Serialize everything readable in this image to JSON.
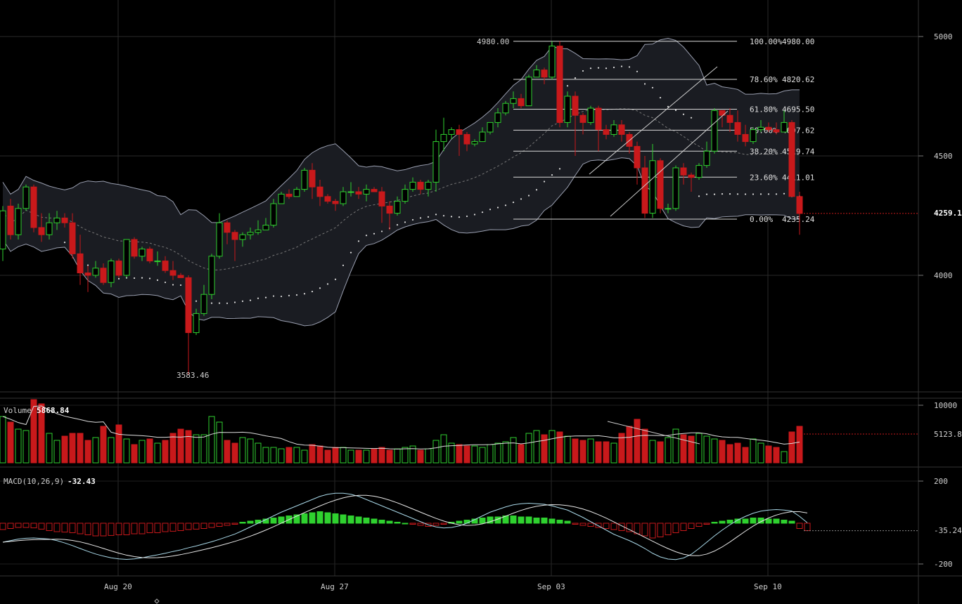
{
  "colors": {
    "background": "#000000",
    "up": "#2fd12f",
    "down": "#c8191b",
    "grid": "#2a2a2a",
    "band_fill": "#1a1c22",
    "band_line": "#9a9fb0",
    "fib_line": "#d8d8d8",
    "macd_line": "#a9d8e8",
    "signal_line": "#e8e8e8"
  },
  "price_panel": {
    "high_label": "4980.00",
    "low_label": "3583.46",
    "current_price": "4259.1",
    "fib_levels": [
      {
        "pct": "100.00%",
        "price": "4980.00",
        "value": 4980.0
      },
      {
        "pct": "78.60%",
        "price": "4820.62",
        "value": 4820.62
      },
      {
        "pct": "61.80%",
        "price": "4695.50",
        "value": 4695.5
      },
      {
        "pct": "50.00%",
        "price": "4607.62",
        "value": 4607.62
      },
      {
        "pct": "38.20%",
        "price": "4519.74",
        "value": 4519.74
      },
      {
        "pct": "23.60%",
        "price": "4411.01",
        "value": 4411.01
      },
      {
        "pct": "0.00%",
        "price": "4235.24",
        "value": 4235.24
      }
    ],
    "y_ticks": [
      "5000",
      "4500",
      "4000"
    ]
  },
  "volume_panel": {
    "label": "Volume",
    "value": "5868.84",
    "y_ticks": [
      "10000"
    ],
    "current": "5123.8"
  },
  "macd_panel": {
    "label": "MACD(10,26,9)",
    "value": "-32.43",
    "y_ticks": [
      "200",
      "-200"
    ],
    "current": "-35.24"
  },
  "x_ticks": [
    "Aug 20",
    "Aug 27",
    "Sep 03",
    "Sep 10"
  ],
  "chart_data": {
    "type": "candlestick",
    "x_labels": [
      "Aug 20",
      "Aug 27",
      "Sep 03",
      "Sep 10"
    ],
    "price_range": [
      3440,
      5110
    ],
    "candles": [
      [
        4110,
        4270,
        4060,
        4290
      ],
      [
        4290,
        4170,
        4150,
        4320
      ],
      [
        4170,
        4280,
        4150,
        4300
      ],
      [
        4280,
        4370,
        4270,
        4380
      ],
      [
        4370,
        4200,
        4180,
        4380
      ],
      [
        4200,
        4170,
        4140,
        4260
      ],
      [
        4170,
        4220,
        4150,
        4260
      ],
      [
        4220,
        4240,
        4190,
        4270
      ],
      [
        4240,
        4220,
        4200,
        4260
      ],
      [
        4220,
        4090,
        4070,
        4260
      ],
      [
        4090,
        4010,
        3960,
        4170
      ],
      [
        4010,
        4000,
        3930,
        4040
      ],
      [
        4000,
        4030,
        3990,
        4060
      ],
      [
        4030,
        3970,
        3960,
        4050
      ],
      [
        3970,
        4060,
        3950,
        4070
      ],
      [
        4060,
        4000,
        3990,
        4070
      ],
      [
        4000,
        4150,
        3990,
        4150
      ],
      [
        4150,
        4080,
        4070,
        4160
      ],
      [
        4080,
        4110,
        4060,
        4120
      ],
      [
        4110,
        4060,
        4050,
        4120
      ],
      [
        4060,
        4060,
        4040,
        4100
      ],
      [
        4060,
        4020,
        4010,
        4080
      ],
      [
        4020,
        4000,
        3980,
        4060
      ],
      [
        4000,
        3990,
        3990,
        4010
      ],
      [
        3990,
        3760,
        3583.46,
        4000
      ],
      [
        3760,
        3840,
        3750,
        3860
      ],
      [
        3840,
        3920,
        3830,
        3960
      ],
      [
        3920,
        4080,
        3900,
        4090
      ],
      [
        4080,
        4220,
        4070,
        4260
      ],
      [
        4220,
        4180,
        4130,
        4230
      ],
      [
        4180,
        4150,
        4060,
        4190
      ],
      [
        4150,
        4170,
        4120,
        4180
      ],
      [
        4170,
        4180,
        4150,
        4200
      ],
      [
        4180,
        4190,
        4170,
        4230
      ],
      [
        4190,
        4210,
        4200,
        4240
      ],
      [
        4210,
        4300,
        4200,
        4320
      ],
      [
        4300,
        4340,
        4300,
        4350
      ],
      [
        4340,
        4330,
        4320,
        4360
      ],
      [
        4330,
        4360,
        4340,
        4370
      ],
      [
        4360,
        4440,
        4350,
        4450
      ],
      [
        4440,
        4370,
        4320,
        4470
      ],
      [
        4370,
        4330,
        4290,
        4400
      ],
      [
        4330,
        4310,
        4300,
        4340
      ],
      [
        4310,
        4300,
        4270,
        4320
      ],
      [
        4300,
        4350,
        4290,
        4370
      ],
      [
        4350,
        4350,
        4330,
        4390
      ],
      [
        4350,
        4340,
        4320,
        4370
      ],
      [
        4340,
        4360,
        4310,
        4380
      ],
      [
        4360,
        4350,
        4350,
        4370
      ],
      [
        4350,
        4290,
        4220,
        4370
      ],
      [
        4290,
        4260,
        4190,
        4310
      ],
      [
        4260,
        4310,
        4250,
        4330
      ],
      [
        4310,
        4360,
        4300,
        4380
      ],
      [
        4360,
        4390,
        4350,
        4410
      ],
      [
        4390,
        4360,
        4340,
        4400
      ],
      [
        4360,
        4390,
        4330,
        4400
      ],
      [
        4390,
        4560,
        4350,
        4610
      ],
      [
        4560,
        4590,
        4520,
        4660
      ],
      [
        4590,
        4610,
        4570,
        4620
      ],
      [
        4610,
        4590,
        4500,
        4630
      ],
      [
        4590,
        4550,
        4520,
        4600
      ],
      [
        4550,
        4560,
        4540,
        4570
      ],
      [
        4560,
        4600,
        4560,
        4620
      ],
      [
        4600,
        4640,
        4590,
        4640
      ],
      [
        4640,
        4680,
        4620,
        4700
      ],
      [
        4680,
        4720,
        4670,
        4730
      ],
      [
        4720,
        4740,
        4700,
        4770
      ],
      [
        4740,
        4710,
        4700,
        4760
      ],
      [
        4710,
        4830,
        4710,
        4840
      ],
      [
        4830,
        4860,
        4830,
        4880
      ],
      [
        4860,
        4830,
        4800,
        4870
      ],
      [
        4830,
        4960,
        4820,
        4980
      ],
      [
        4960,
        4640,
        4620,
        4980
      ],
      [
        4640,
        4750,
        4620,
        4770
      ],
      [
        4750,
        4670,
        4500,
        4770
      ],
      [
        4670,
        4640,
        4590,
        4680
      ],
      [
        4640,
        4700,
        4630,
        4710
      ],
      [
        4700,
        4610,
        4520,
        4710
      ],
      [
        4610,
        4590,
        4570,
        4630
      ],
      [
        4590,
        4630,
        4580,
        4650
      ],
      [
        4630,
        4590,
        4560,
        4650
      ],
      [
        4590,
        4540,
        4510,
        4600
      ],
      [
        4540,
        4450,
        4380,
        4560
      ],
      [
        4450,
        4260,
        4240,
        4500
      ],
      [
        4260,
        4480,
        4240,
        4550
      ],
      [
        4480,
        4280,
        4260,
        4490
      ],
      [
        4280,
        4280,
        4260,
        4300
      ],
      [
        4280,
        4450,
        4270,
        4460
      ],
      [
        4450,
        4420,
        4380,
        4470
      ],
      [
        4420,
        4410,
        4350,
        4430
      ],
      [
        4410,
        4460,
        4400,
        4470
      ],
      [
        4460,
        4520,
        4450,
        4560
      ],
      [
        4520,
        4690,
        4510,
        4700
      ],
      [
        4690,
        4670,
        4620,
        4690
      ],
      [
        4670,
        4640,
        4600,
        4700
      ],
      [
        4640,
        4590,
        4560,
        4690
      ],
      [
        4590,
        4560,
        4540,
        4630
      ],
      [
        4560,
        4610,
        4550,
        4620
      ],
      [
        4610,
        4620,
        4600,
        4650
      ],
      [
        4620,
        4610,
        4600,
        4640
      ],
      [
        4610,
        4600,
        4590,
        4640
      ],
      [
        4600,
        4640,
        4600,
        4690
      ],
      [
        4640,
        4330,
        4330,
        4650
      ],
      [
        4330,
        4259,
        4170,
        4350
      ]
    ],
    "volume": [
      1.65,
      1.45,
      1.2,
      1.15,
      4.6,
      2.1,
      1.05,
      0.8,
      0.95,
      1.05,
      1.05,
      0.8,
      0.9,
      1.3,
      0.9,
      1.35,
      0.85,
      0.65,
      0.8,
      0.85,
      0.7,
      0.8,
      1.05,
      1.2,
      1.15,
      1.0,
      1.0,
      1.65,
      1.45,
      0.8,
      0.7,
      0.9,
      0.85,
      0.7,
      0.55,
      0.55,
      0.5,
      0.55,
      0.55,
      0.45,
      0.65,
      0.6,
      0.45,
      0.55,
      0.55,
      0.45,
      0.45,
      0.45,
      0.5,
      0.55,
      0.45,
      0.5,
      0.55,
      0.6,
      0.45,
      0.5,
      0.8,
      1.0,
      0.7,
      0.65,
      0.6,
      0.6,
      0.55,
      0.65,
      0.7,
      0.75,
      0.9,
      0.65,
      1.05,
      1.15,
      1.0,
      1.15,
      1.1,
      0.95,
      0.85,
      0.8,
      0.85,
      0.75,
      0.75,
      0.7,
      1.05,
      1.3,
      1.55,
      1.2,
      0.8,
      0.75,
      0.9,
      1.2,
      1.0,
      0.95,
      1.05,
      0.95,
      0.85,
      0.8,
      0.65,
      0.7,
      0.55,
      0.85,
      0.7,
      0.6,
      0.55,
      0.4,
      1.1,
      1.3
    ],
    "volume_max": 10000,
    "macd_histogram": [
      -30,
      -25,
      -20,
      -20,
      -22,
      -28,
      -35,
      -40,
      -42,
      -45,
      -50,
      -55,
      -60,
      -60,
      -58,
      -55,
      -55,
      -50,
      -50,
      -45,
      -45,
      -40,
      -38,
      -35,
      -30,
      -28,
      -25,
      -20,
      -15,
      -10,
      -5,
      5,
      10,
      15,
      20,
      25,
      30,
      35,
      40,
      45,
      50,
      55,
      50,
      45,
      40,
      35,
      30,
      25,
      20,
      15,
      10,
      5,
      0,
      -5,
      -10,
      -15,
      -10,
      -5,
      5,
      10,
      15,
      20,
      25,
      30,
      30,
      35,
      35,
      30,
      30,
      25,
      25,
      20,
      15,
      10,
      -5,
      -10,
      -15,
      -20,
      -25,
      -30,
      -35,
      -40,
      -50,
      -60,
      -70,
      -65,
      -55,
      -45,
      -35,
      -25,
      -15,
      -5,
      5,
      10,
      15,
      20,
      20,
      25,
      25,
      20,
      20,
      15,
      10,
      -25,
      -35
    ],
    "macd_range": [
      -270,
      270
    ]
  }
}
